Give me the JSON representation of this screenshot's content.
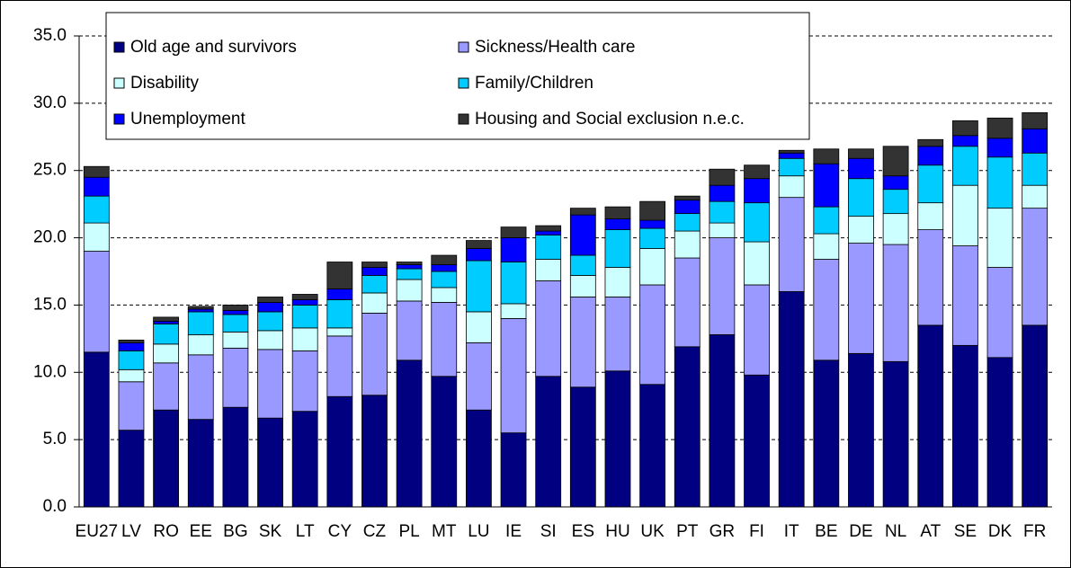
{
  "chart_data": {
    "type": "stacked-bar",
    "categories": [
      "EU27",
      "LV",
      "RO",
      "EE",
      "BG",
      "SK",
      "LT",
      "CY",
      "CZ",
      "PL",
      "MT",
      "LU",
      "IE",
      "SI",
      "ES",
      "HU",
      "UK",
      "PT",
      "GR",
      "FI",
      "IT",
      "BE",
      "DE",
      "NL",
      "AT",
      "SE",
      "DK",
      "FR"
    ],
    "series": [
      {
        "name": "Old age and survivors",
        "color": "#000080",
        "values": [
          11.5,
          5.7,
          7.2,
          6.5,
          7.4,
          6.6,
          7.1,
          8.2,
          8.3,
          10.9,
          9.7,
          7.2,
          5.5,
          9.7,
          8.9,
          10.1,
          9.1,
          11.9,
          12.8,
          9.8,
          16.0,
          10.9,
          11.4,
          10.8,
          13.5,
          12.0,
          11.1,
          13.5
        ]
      },
      {
        "name": "Sickness/Health care",
        "color": "#9999ff",
        "values": [
          7.5,
          3.6,
          3.5,
          4.8,
          4.4,
          5.1,
          4.5,
          4.5,
          6.1,
          4.4,
          5.5,
          5.0,
          8.5,
          7.1,
          6.7,
          5.5,
          7.4,
          6.6,
          7.2,
          6.7,
          7.0,
          7.5,
          8.2,
          8.7,
          7.1,
          7.4,
          6.7,
          8.7
        ]
      },
      {
        "name": "Disability",
        "color": "#ccffff",
        "values": [
          2.1,
          0.9,
          1.4,
          1.5,
          1.2,
          1.4,
          1.7,
          0.6,
          1.5,
          1.6,
          1.1,
          2.3,
          1.1,
          1.6,
          1.6,
          2.2,
          2.7,
          2.0,
          1.1,
          3.2,
          1.6,
          1.9,
          2.0,
          2.3,
          2.0,
          4.5,
          4.4,
          1.7
        ]
      },
      {
        "name": "Family/Children",
        "color": "#00ccff",
        "values": [
          2.0,
          1.4,
          1.5,
          1.7,
          1.3,
          1.4,
          1.7,
          2.1,
          1.3,
          0.8,
          1.2,
          3.8,
          3.1,
          1.8,
          1.5,
          2.8,
          1.5,
          1.3,
          1.6,
          2.9,
          1.3,
          2.0,
          2.8,
          1.8,
          2.8,
          2.9,
          3.8,
          2.4
        ]
      },
      {
        "name": "Unemployment",
        "color": "#0000ff",
        "values": [
          1.4,
          0.6,
          0.2,
          0.2,
          0.3,
          0.7,
          0.4,
          0.8,
          0.6,
          0.3,
          0.5,
          0.9,
          1.8,
          0.3,
          3.0,
          0.8,
          0.6,
          1.0,
          1.2,
          1.8,
          0.4,
          3.2,
          1.5,
          1.0,
          1.4,
          0.8,
          1.4,
          1.8
        ]
      },
      {
        "name": "Housing and Social exclusion n.e.c.",
        "color": "#333333",
        "values": [
          0.8,
          0.2,
          0.3,
          0.2,
          0.4,
          0.4,
          0.4,
          2.0,
          0.4,
          0.2,
          0.7,
          0.6,
          0.8,
          0.4,
          0.5,
          0.9,
          1.4,
          0.3,
          1.2,
          1.0,
          0.2,
          1.1,
          0.7,
          2.2,
          0.5,
          1.1,
          1.5,
          1.2
        ]
      }
    ],
    "ylim": [
      0,
      35
    ],
    "yticks": [
      {
        "value": 0,
        "label": "0.0"
      },
      {
        "value": 5,
        "label": "5.0"
      },
      {
        "value": 10,
        "label": "10.0"
      },
      {
        "value": 15,
        "label": "15.0"
      },
      {
        "value": 20,
        "label": "20.0"
      },
      {
        "value": 25,
        "label": "25.0"
      },
      {
        "value": 30,
        "label": "30.0"
      },
      {
        "value": 35,
        "label": "35.0"
      }
    ],
    "grid": true
  }
}
